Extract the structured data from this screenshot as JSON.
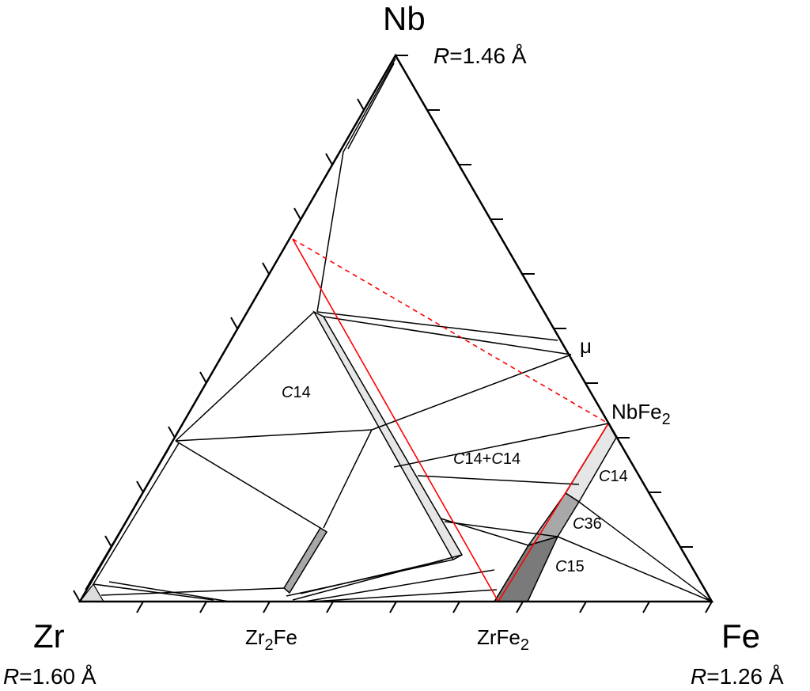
{
  "vertices": {
    "top": "Nb",
    "left": "Zr",
    "right": "Fe"
  },
  "radii": {
    "nb_r": "R",
    "nb_val": "=1.46 Å",
    "zr_r": "R",
    "zr_val": "=1.60 Å",
    "fe_r": "R",
    "fe_val": "=1.26 Å"
  },
  "compounds": {
    "zr2fe_a": "Zr",
    "zr2fe_sub": "2",
    "zr2fe_b": "Fe",
    "zrfe2_a": "ZrFe",
    "zrfe2_sub": "2",
    "nbfe2_a": "NbFe",
    "nbfe2_sub": "2",
    "mu": "μ"
  },
  "phases": {
    "c14_main_c": "C",
    "c14_main_n": "14",
    "mix_c1": "C",
    "mix_n1": "14+",
    "mix_c2": "C",
    "mix_n2": "14",
    "c14_right_c": "C",
    "c14_right_n": "14",
    "c36_c": "C",
    "c36_n": "36",
    "c15_c": "C",
    "c15_n": "15"
  },
  "colors": {
    "light_phase": "#e6e6e6",
    "mid_phase": "#a8a8a8",
    "dark_phase": "#7a7a7a",
    "section_line": "#ff0000"
  }
}
